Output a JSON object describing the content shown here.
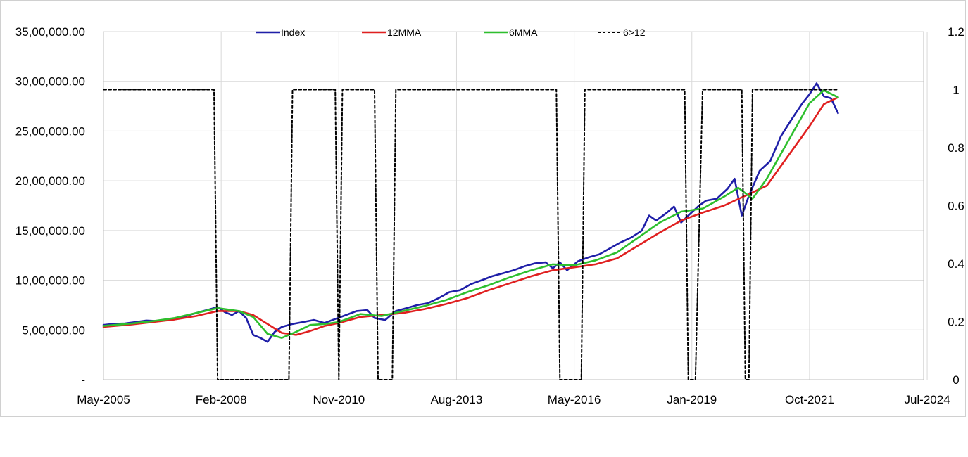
{
  "chart_data": {
    "type": "line",
    "title": "",
    "xlabel": "",
    "ylabel": "",
    "y2label": "",
    "x_tick_labels": [
      "May-2005",
      "Feb-2008",
      "Nov-2010",
      "Aug-2013",
      "May-2016",
      "Jan-2019",
      "Oct-2021",
      "Jul-2024"
    ],
    "xlim": [
      "2005-05",
      "2024-07"
    ],
    "y_tick_labels": [
      "-",
      "5,00,000.00",
      "10,00,000.00",
      "15,00,000.00",
      "20,00,000.00",
      "25,00,000.00",
      "30,00,000.00",
      "35,00,000.00"
    ],
    "y_ticks": [
      0,
      500000,
      1000000,
      1500000,
      2000000,
      2500000,
      3000000,
      3500000
    ],
    "ylim": [
      0,
      3500000
    ],
    "y2_tick_labels": [
      "0",
      "0.2",
      "0.4",
      "0.6",
      "0.8",
      "1",
      "1.2"
    ],
    "y2_ticks": [
      0,
      0.2,
      0.4,
      0.6,
      0.8,
      1.0,
      1.2
    ],
    "y2lim": [
      0,
      1.2
    ],
    "grid": true,
    "legend_position": "top",
    "series": [
      {
        "name": "Index",
        "axis": "left",
        "color": "#1f1fa8",
        "style": "solid",
        "points": [
          [
            "2005-05",
            550000
          ],
          [
            "2005-08",
            562000
          ],
          [
            "2005-11",
            565000
          ],
          [
            "2006-02",
            580000
          ],
          [
            "2006-05",
            595000
          ],
          [
            "2006-08",
            590000
          ],
          [
            "2006-11",
            600000
          ],
          [
            "2007-02",
            620000
          ],
          [
            "2007-05",
            650000
          ],
          [
            "2007-08",
            680000
          ],
          [
            "2007-11",
            710000
          ],
          [
            "2008-01",
            730000
          ],
          [
            "2008-03",
            680000
          ],
          [
            "2008-05",
            650000
          ],
          [
            "2008-07",
            690000
          ],
          [
            "2008-09",
            620000
          ],
          [
            "2008-11",
            450000
          ],
          [
            "2009-01",
            420000
          ],
          [
            "2009-03",
            380000
          ],
          [
            "2009-05",
            480000
          ],
          [
            "2009-07",
            530000
          ],
          [
            "2009-10",
            560000
          ],
          [
            "2010-01",
            580000
          ],
          [
            "2010-04",
            600000
          ],
          [
            "2010-07",
            570000
          ],
          [
            "2010-10",
            610000
          ],
          [
            "2011-01",
            650000
          ],
          [
            "2011-04",
            690000
          ],
          [
            "2011-07",
            700000
          ],
          [
            "2011-09",
            620000
          ],
          [
            "2011-12",
            600000
          ],
          [
            "2012-03",
            690000
          ],
          [
            "2012-06",
            720000
          ],
          [
            "2012-09",
            750000
          ],
          [
            "2012-12",
            770000
          ],
          [
            "2013-03",
            820000
          ],
          [
            "2013-06",
            880000
          ],
          [
            "2013-09",
            900000
          ],
          [
            "2013-12",
            960000
          ],
          [
            "2014-03",
            1000000
          ],
          [
            "2014-06",
            1040000
          ],
          [
            "2014-09",
            1070000
          ],
          [
            "2014-12",
            1100000
          ],
          [
            "2015-03",
            1140000
          ],
          [
            "2015-06",
            1170000
          ],
          [
            "2015-09",
            1180000
          ],
          [
            "2015-11",
            1120000
          ],
          [
            "2016-01",
            1180000
          ],
          [
            "2016-03",
            1100000
          ],
          [
            "2016-06",
            1190000
          ],
          [
            "2016-09",
            1230000
          ],
          [
            "2016-12",
            1260000
          ],
          [
            "2017-03",
            1320000
          ],
          [
            "2017-06",
            1380000
          ],
          [
            "2017-09",
            1430000
          ],
          [
            "2017-12",
            1500000
          ],
          [
            "2018-02",
            1650000
          ],
          [
            "2018-04",
            1600000
          ],
          [
            "2018-07",
            1680000
          ],
          [
            "2018-09",
            1740000
          ],
          [
            "2018-11",
            1580000
          ],
          [
            "2019-01",
            1650000
          ],
          [
            "2019-04",
            1750000
          ],
          [
            "2019-06",
            1800000
          ],
          [
            "2019-09",
            1820000
          ],
          [
            "2019-12",
            1920000
          ],
          [
            "2020-02",
            2020000
          ],
          [
            "2020-04",
            1650000
          ],
          [
            "2020-06",
            1850000
          ],
          [
            "2020-09",
            2100000
          ],
          [
            "2020-12",
            2200000
          ],
          [
            "2021-03",
            2450000
          ],
          [
            "2021-06",
            2620000
          ],
          [
            "2021-09",
            2780000
          ],
          [
            "2021-11",
            2870000
          ],
          [
            "2022-01",
            2980000
          ],
          [
            "2022-03",
            2850000
          ],
          [
            "2022-05",
            2830000
          ],
          [
            "2022-07",
            2680000
          ]
        ]
      },
      {
        "name": "12MMA",
        "axis": "left",
        "color": "#e02020",
        "style": "solid",
        "points": [
          [
            "2005-05",
            530000
          ],
          [
            "2006-01",
            555000
          ],
          [
            "2006-07",
            580000
          ],
          [
            "2007-01",
            605000
          ],
          [
            "2007-07",
            640000
          ],
          [
            "2008-01",
            690000
          ],
          [
            "2008-07",
            690000
          ],
          [
            "2008-11",
            650000
          ],
          [
            "2009-03",
            560000
          ],
          [
            "2009-07",
            470000
          ],
          [
            "2009-11",
            450000
          ],
          [
            "2010-03",
            490000
          ],
          [
            "2010-07",
            540000
          ],
          [
            "2010-11",
            570000
          ],
          [
            "2011-05",
            630000
          ],
          [
            "2011-11",
            650000
          ],
          [
            "2012-05",
            670000
          ],
          [
            "2012-11",
            710000
          ],
          [
            "2013-05",
            760000
          ],
          [
            "2013-11",
            820000
          ],
          [
            "2014-05",
            900000
          ],
          [
            "2014-11",
            970000
          ],
          [
            "2015-05",
            1040000
          ],
          [
            "2015-11",
            1100000
          ],
          [
            "2016-05",
            1130000
          ],
          [
            "2016-11",
            1160000
          ],
          [
            "2017-05",
            1220000
          ],
          [
            "2017-11",
            1350000
          ],
          [
            "2018-05",
            1480000
          ],
          [
            "2018-11",
            1600000
          ],
          [
            "2019-05",
            1680000
          ],
          [
            "2019-11",
            1750000
          ],
          [
            "2020-05",
            1850000
          ],
          [
            "2020-11",
            1950000
          ],
          [
            "2021-05",
            2250000
          ],
          [
            "2021-11",
            2550000
          ],
          [
            "2022-03",
            2770000
          ],
          [
            "2022-07",
            2840000
          ]
        ]
      },
      {
        "name": "6MMA",
        "axis": "left",
        "color": "#2ebf2e",
        "style": "solid",
        "points": [
          [
            "2005-05",
            540000
          ],
          [
            "2006-01",
            565000
          ],
          [
            "2006-07",
            590000
          ],
          [
            "2007-01",
            620000
          ],
          [
            "2007-07",
            670000
          ],
          [
            "2008-01",
            720000
          ],
          [
            "2008-07",
            690000
          ],
          [
            "2008-11",
            630000
          ],
          [
            "2009-03",
            460000
          ],
          [
            "2009-07",
            420000
          ],
          [
            "2009-11",
            480000
          ],
          [
            "2010-03",
            550000
          ],
          [
            "2010-07",
            560000
          ],
          [
            "2010-11",
            580000
          ],
          [
            "2011-05",
            660000
          ],
          [
            "2011-11",
            640000
          ],
          [
            "2012-05",
            690000
          ],
          [
            "2012-11",
            740000
          ],
          [
            "2013-05",
            800000
          ],
          [
            "2013-11",
            880000
          ],
          [
            "2014-05",
            950000
          ],
          [
            "2014-11",
            1030000
          ],
          [
            "2015-05",
            1100000
          ],
          [
            "2015-11",
            1160000
          ],
          [
            "2016-05",
            1150000
          ],
          [
            "2016-11",
            1200000
          ],
          [
            "2017-05",
            1280000
          ],
          [
            "2017-11",
            1430000
          ],
          [
            "2018-05",
            1580000
          ],
          [
            "2018-11",
            1690000
          ],
          [
            "2019-05",
            1720000
          ],
          [
            "2019-11",
            1840000
          ],
          [
            "2020-03",
            1930000
          ],
          [
            "2020-07",
            1820000
          ],
          [
            "2020-11",
            2020000
          ],
          [
            "2021-05",
            2400000
          ],
          [
            "2021-11",
            2780000
          ],
          [
            "2022-03",
            2910000
          ],
          [
            "2022-07",
            2840000
          ]
        ]
      },
      {
        "name": "6>12",
        "axis": "right",
        "color": "#000000",
        "style": "dashed",
        "points": [
          [
            "2005-05",
            1
          ],
          [
            "2007-12",
            1
          ],
          [
            "2008-01",
            0
          ],
          [
            "2009-09",
            0
          ],
          [
            "2009-10",
            1
          ],
          [
            "2010-10",
            1
          ],
          [
            "2010-11",
            0
          ],
          [
            "2010-12",
            1
          ],
          [
            "2011-09",
            1
          ],
          [
            "2011-10",
            0
          ],
          [
            "2012-02",
            0
          ],
          [
            "2012-03",
            1
          ],
          [
            "2015-12",
            1
          ],
          [
            "2016-01",
            0
          ],
          [
            "2016-07",
            0
          ],
          [
            "2016-08",
            1
          ],
          [
            "2018-12",
            1
          ],
          [
            "2019-01",
            0
          ],
          [
            "2019-03",
            0
          ],
          [
            "2019-05",
            1
          ],
          [
            "2020-04",
            1
          ],
          [
            "2020-05",
            0
          ],
          [
            "2020-06",
            0
          ],
          [
            "2020-07",
            1
          ],
          [
            "2022-07",
            1
          ]
        ]
      }
    ]
  }
}
